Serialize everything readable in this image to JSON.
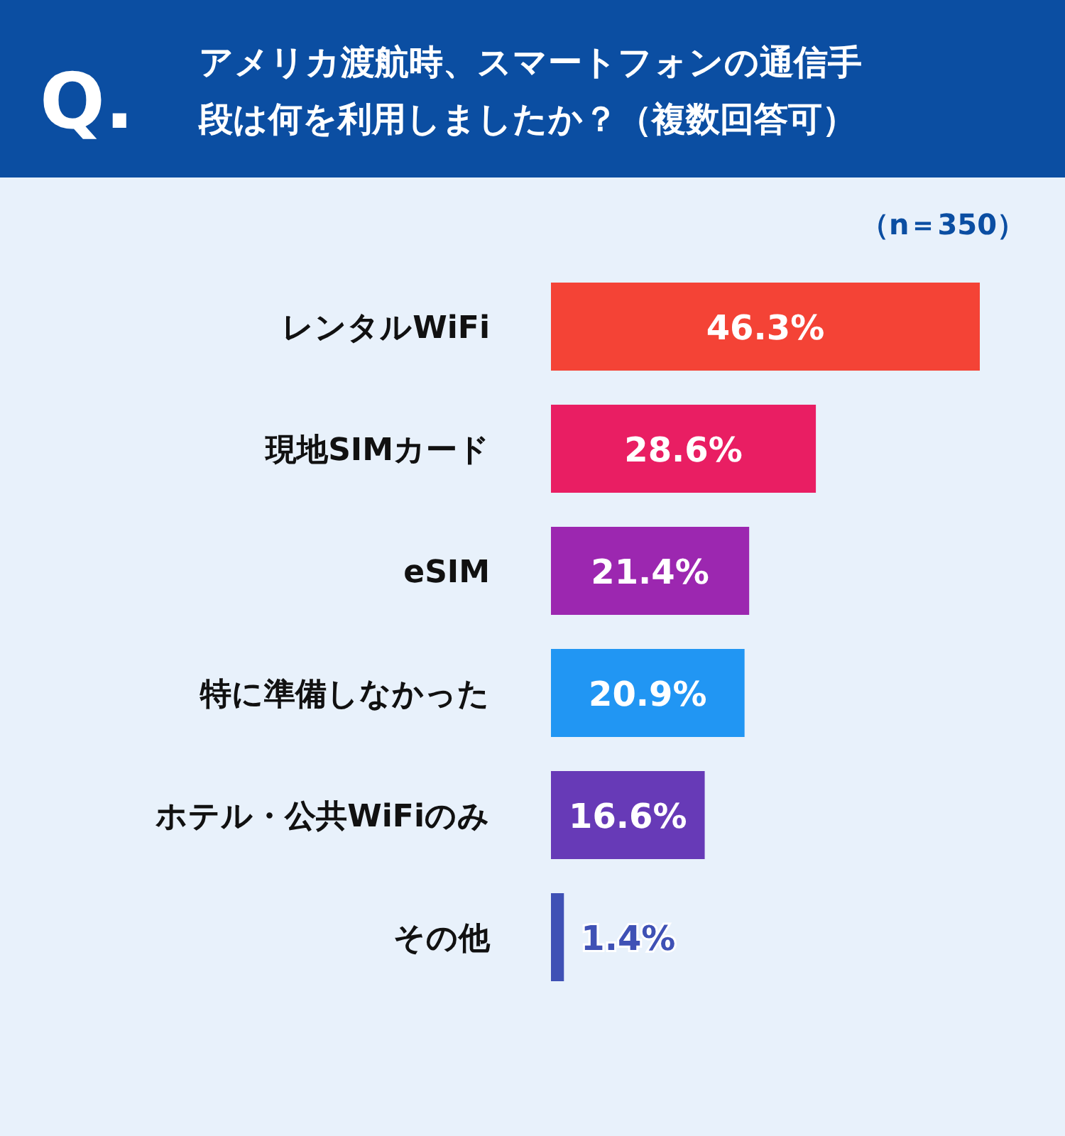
{
  "chart_data": {
    "type": "bar",
    "orientation": "horizontal",
    "title": "アメリカ渡航時、スマートフォンの通信手段は何を利用しましたか？（複数回答可）",
    "subtitle": "（n＝350）",
    "annotations": [
      "Q."
    ],
    "categories": [
      "レンタルWiFi",
      "現地SIMカード",
      "eSIM",
      "特に準備しなかった",
      "ホテル・公共WiFiのみ",
      "その他"
    ],
    "values": [
      46.3,
      28.6,
      21.4,
      20.9,
      16.6,
      1.4
    ],
    "colors": [
      "#f44336",
      "#e91e63",
      "#9c27b0",
      "#2196f3",
      "#673ab7",
      "#3f51b5"
    ],
    "value_labels": [
      "46.3%",
      "28.6%",
      "21.4%",
      "20.9%",
      "16.6%",
      "1.4%"
    ],
    "tick_labels": "y"
  }
}
